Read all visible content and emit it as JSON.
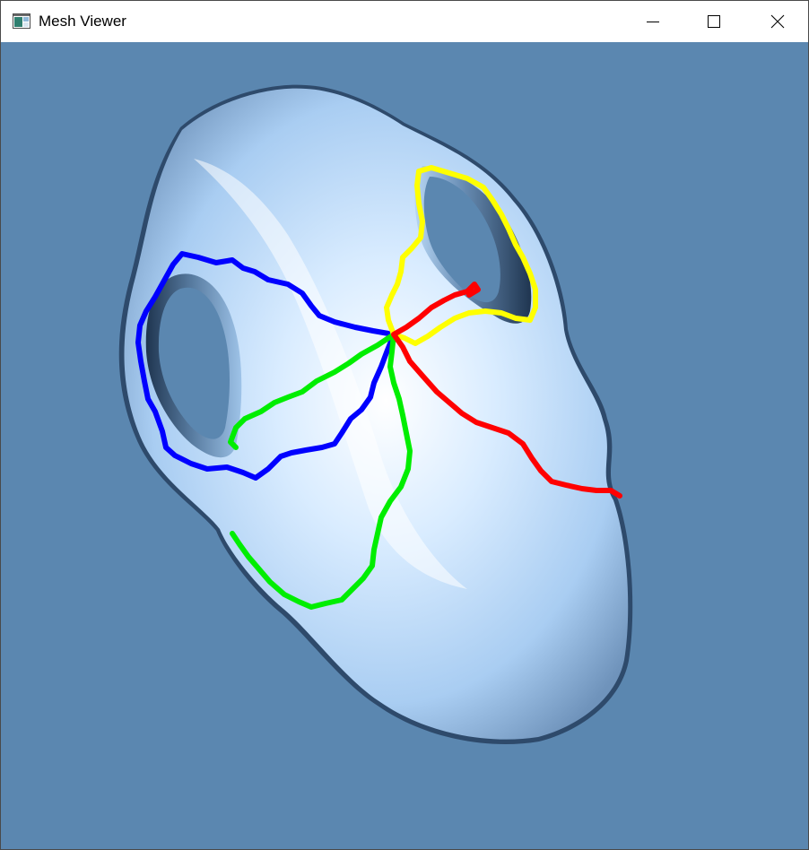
{
  "window": {
    "title": "Mesh Viewer",
    "app_icon": "window-app-icon",
    "controls": {
      "minimize_icon": "minimize-icon",
      "maximize_icon": "maximize-icon",
      "close_icon": "close-icon"
    }
  },
  "viewport": {
    "background_color": "#5b87b0",
    "mesh_color": "#a9cdf2",
    "mesh_highlight": "#ffffff",
    "mesh_shadow": "#2e4a6b",
    "paths": [
      {
        "color": "#0000ff"
      },
      {
        "color": "#00ee00"
      },
      {
        "color": "#ffff00"
      },
      {
        "color": "#ff0000"
      }
    ]
  }
}
